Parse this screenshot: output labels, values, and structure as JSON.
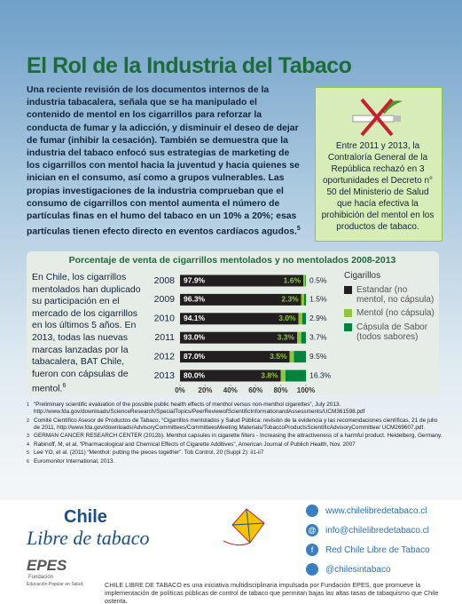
{
  "header": {
    "title": "El Rol de la Industria del Tabaco"
  },
  "intro": {
    "text": "Una reciente revisión de los documentos internos de la industria tabacalera, señala que se ha manipulado el contenido de mentol en los cigarrillos para reforzar la conducta de fumar y la adicción, y disminuir el deseo de dejar de fumar (inhibir la cesación). También se demuestra que la industria del tabaco enfocó sus estrategias de marketing de los cigarrillos con mentol hacia la juventud y hacia quienes se inician en el consumo, así como a grupos vulnerables. Las propias investigaciones de la industria comprueban que el consumo de cigarrillos con mentol aumenta el número de partículas finas en el humo del tabaco en un 10% a 20%; esas partículas tienen efecto directo en eventos cardíacos agudos.",
    "ref": "5"
  },
  "sidebar": {
    "text": "Entre 2011 y 2013, la Contraloría General de la República rechazó en 3 oportunidades el Decreto n° 50 del Ministerio de Salud que hacía efectiva la prohibición del mentol en los productos de tabaco."
  },
  "chart_data": {
    "type": "stacked-bar-horizontal",
    "title": "Porcentaje de venta de cigarrillos mentolados y no mentolados 2008-2013",
    "note": "En Chile, los cigarrillos mentolados han duplicado su participación en el mercado de los cigarrillos en los últimos 5 años. En 2013, todas las nuevas marcas lanzadas por la tabacalera, BAT Chile, fueron con cápsulas de mentol.",
    "note_ref": "6",
    "categories": [
      "2008",
      "2009",
      "2010",
      "2011",
      "2012",
      "2013"
    ],
    "legend_title": "Cigarillos",
    "series": [
      {
        "name": "Estandar (no mentol, no cápsula)",
        "color": "#231f20",
        "values": [
          97.9,
          96.3,
          94.1,
          93.0,
          87.0,
          80.0
        ],
        "value_labels": [
          "97.9%",
          "96.3%",
          "94.1%",
          "93.0%",
          "87.0%",
          "80.0%"
        ]
      },
      {
        "name": "Mentol (no cápsula)",
        "color": "#8dc63f",
        "values": [
          1.6,
          2.3,
          3.0,
          3.3,
          3.5,
          3.8
        ],
        "value_labels": [
          "1.6%",
          "2.3%",
          "3.0%",
          "3.3%",
          "3.5%",
          "3.8%"
        ]
      },
      {
        "name": "Cápsula de Sabor (todos sabores)",
        "color": "#00843d",
        "values": [
          0.5,
          1.5,
          2.9,
          3.7,
          9.5,
          16.3
        ],
        "value_labels": [
          "0.5%",
          "1.5%",
          "2.9%",
          "3.7%",
          "9.5%",
          "16.3%"
        ]
      }
    ],
    "xlim": [
      0,
      100
    ],
    "xticks": [
      {
        "value": 0,
        "label": "0%"
      },
      {
        "value": 20,
        "label": "20%"
      },
      {
        "value": 40,
        "label": "40%"
      },
      {
        "value": 60,
        "label": "60%"
      },
      {
        "value": 80,
        "label": "80%"
      },
      {
        "value": 100,
        "label": "100%"
      }
    ]
  },
  "footnotes": [
    {
      "marker": "1",
      "text": "“Preliminary scientific evaluation of the possible public health effects of menthol versus non-menthol cigarettes”, July 2013. http://www.fda.gov/downloads/ScienceResearch/SpecialTopics/PeerReviewofScientificInformationandAssessments/UCM361598.pdf"
    },
    {
      "marker": "2",
      "text": "Comité Científico Asesor de Productos de Tabaco, “Cigarrillos mentolados y Salud Pública: revisión de la evidencia y las recomendaciones científicas, 21 de julio de 2011, http://www.fda.gov/downloads/AdvisoryCommittees/CommitteesMeeting Materials/TobaccoProductsScientificAdvisoryCommittee/ UCM269607.pdf."
    },
    {
      "marker": "3",
      "text": "GERMAN CANCER RESEARCH CENTER (2012b). Menthol capsules in cigarette filters - Increasing the attractiveness of a harmful product. Heidelberg, Germany."
    },
    {
      "marker": "4",
      "text": "Rabinoff, M, et al, “Pharmacological and Chemical Effects of Cigarette Additives”, American Journal of Publich Health, Nov. 2007"
    },
    {
      "marker": "5",
      "text": "Lee YO, et al. (2011) “Menthol: putting the pieces together”. Tob Control, 20 (Suppl 2): ii1-ii7"
    },
    {
      "marker": "6",
      "text": "Euromonitor International, 2013."
    }
  ],
  "footer": {
    "logo_line1": "Chile",
    "logo_line2": "Libre de tabaco",
    "epes": "EPES",
    "epes_sub1": "Fundación",
    "epes_sub2": "Educación Popular en Salud",
    "contacts": [
      "www.chilelibredetabaco.cl",
      "info@chilelibredetabaco.cl",
      "Red Chile Libre de Tabaco",
      "@chilesintabaco"
    ],
    "description": "CHILE LIBRE DE TABACO es una iniciativa multidisciplinaria impulsada por Fundación EPES, que promueve la implementación de políticas públicas de control de tabaco que permitan bajas las altas tasas de tabaquismo que Chile ostenta."
  }
}
